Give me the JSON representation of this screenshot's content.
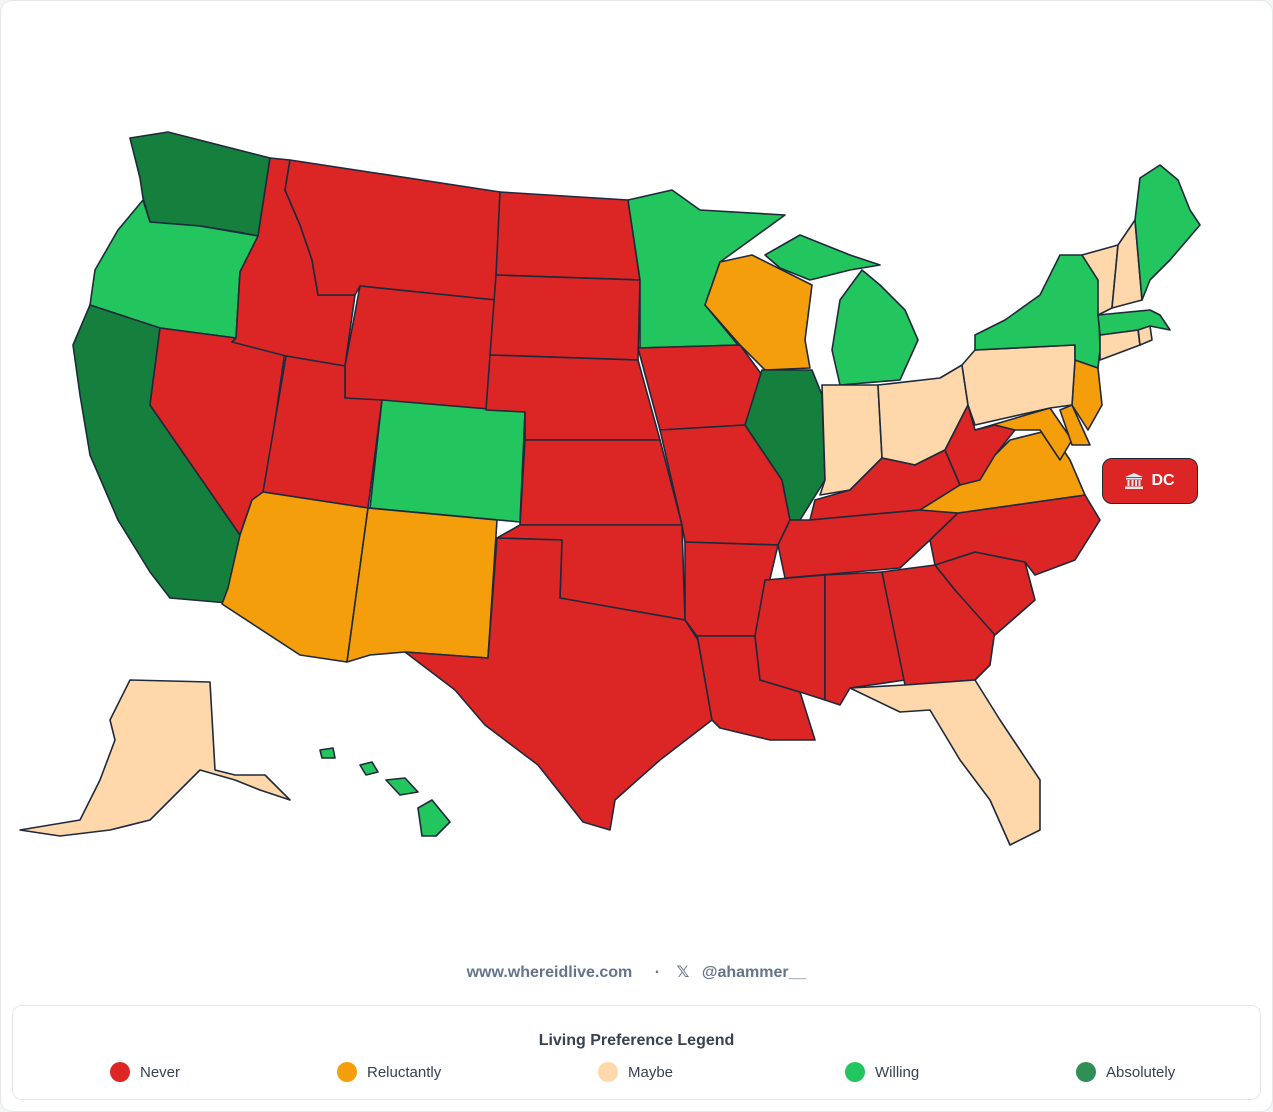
{
  "colors": {
    "never": "#dc2626",
    "reluctantly": "#f59e0b",
    "maybe": "#fed7aa",
    "willing": "#22c55e",
    "absolutely": "#15803d",
    "border": "#1e293b"
  },
  "states": [
    {
      "code": "WA",
      "level": "absolutely"
    },
    {
      "code": "OR",
      "level": "willing"
    },
    {
      "code": "CA",
      "level": "absolutely"
    },
    {
      "code": "NV",
      "level": "never"
    },
    {
      "code": "ID",
      "level": "never"
    },
    {
      "code": "MT",
      "level": "never"
    },
    {
      "code": "WY",
      "level": "never"
    },
    {
      "code": "UT",
      "level": "never"
    },
    {
      "code": "AZ",
      "level": "reluctantly"
    },
    {
      "code": "CO",
      "level": "willing"
    },
    {
      "code": "NM",
      "level": "reluctantly"
    },
    {
      "code": "ND",
      "level": "never"
    },
    {
      "code": "SD",
      "level": "never"
    },
    {
      "code": "NE",
      "level": "never"
    },
    {
      "code": "KS",
      "level": "never"
    },
    {
      "code": "OK",
      "level": "never"
    },
    {
      "code": "TX",
      "level": "never"
    },
    {
      "code": "MN",
      "level": "willing"
    },
    {
      "code": "IA",
      "level": "never"
    },
    {
      "code": "MO",
      "level": "never"
    },
    {
      "code": "AR",
      "level": "never"
    },
    {
      "code": "LA",
      "level": "never"
    },
    {
      "code": "WI",
      "level": "reluctantly"
    },
    {
      "code": "IL",
      "level": "absolutely"
    },
    {
      "code": "MI",
      "level": "willing"
    },
    {
      "code": "IN",
      "level": "maybe"
    },
    {
      "code": "OH",
      "level": "maybe"
    },
    {
      "code": "KY",
      "level": "never"
    },
    {
      "code": "TN",
      "level": "never"
    },
    {
      "code": "MS",
      "level": "never"
    },
    {
      "code": "AL",
      "level": "never"
    },
    {
      "code": "GA",
      "level": "never"
    },
    {
      "code": "FL",
      "level": "maybe"
    },
    {
      "code": "SC",
      "level": "never"
    },
    {
      "code": "NC",
      "level": "never"
    },
    {
      "code": "VA",
      "level": "reluctantly"
    },
    {
      "code": "WV",
      "level": "never"
    },
    {
      "code": "MD",
      "level": "reluctantly"
    },
    {
      "code": "DE",
      "level": "reluctantly"
    },
    {
      "code": "NJ",
      "level": "reluctantly"
    },
    {
      "code": "PA",
      "level": "maybe"
    },
    {
      "code": "NY",
      "level": "willing"
    },
    {
      "code": "CT",
      "level": "maybe"
    },
    {
      "code": "RI",
      "level": "maybe"
    },
    {
      "code": "MA",
      "level": "willing"
    },
    {
      "code": "VT",
      "level": "maybe"
    },
    {
      "code": "NH",
      "level": "maybe"
    },
    {
      "code": "ME",
      "level": "willing"
    },
    {
      "code": "AK",
      "level": "maybe"
    },
    {
      "code": "HI",
      "level": "willing"
    }
  ],
  "dc": {
    "label": "DC",
    "level": "never",
    "icon": "government-building-icon"
  },
  "credits": {
    "site": "www.whereidlive.com",
    "separator": "·",
    "x_icon": "𝕏",
    "handle": "@ahammer__"
  },
  "legend": {
    "title": "Living Preference Legend",
    "items": [
      {
        "key": "never",
        "label": "Never"
      },
      {
        "key": "reluctantly",
        "label": "Reluctantly"
      },
      {
        "key": "maybe",
        "label": "Maybe"
      },
      {
        "key": "willing",
        "label": "Willing"
      },
      {
        "key": "absolutely",
        "label": "Absolutely"
      }
    ]
  }
}
